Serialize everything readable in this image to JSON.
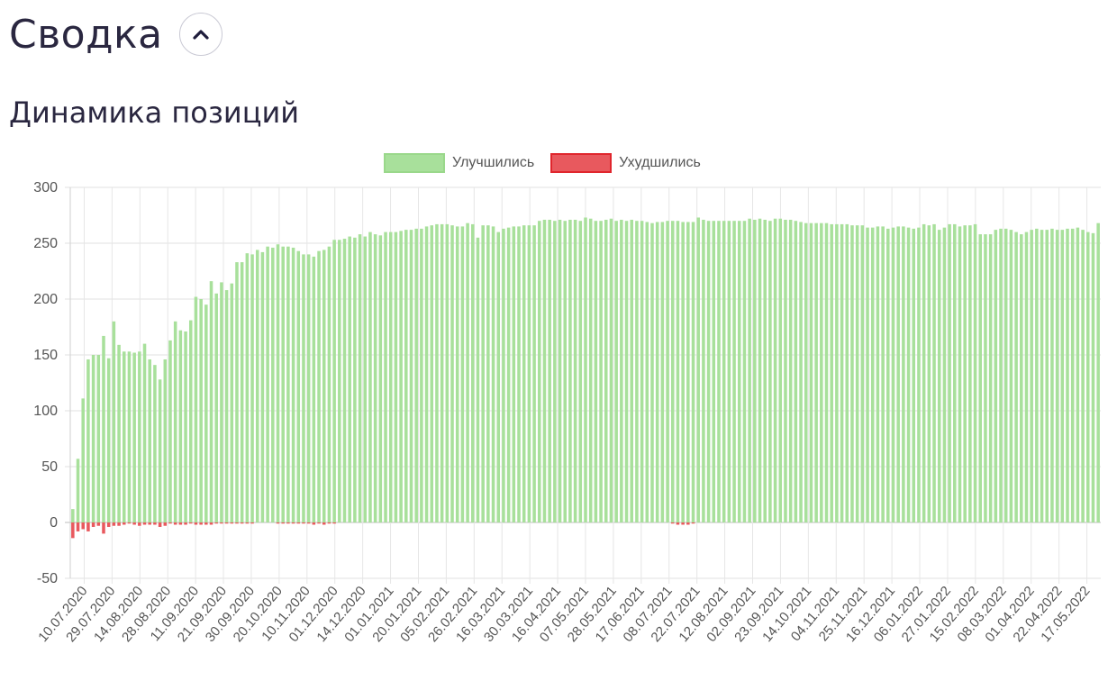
{
  "header": {
    "title": "Сводка",
    "collapse_icon": "chevron-up-icon"
  },
  "section": {
    "title": "Динамика позиций"
  },
  "chart_data": {
    "type": "bar",
    "title": "Динамика позиций",
    "legend_position": "top",
    "grid": true,
    "ylim": [
      -50,
      300
    ],
    "y_ticks": [
      300,
      250,
      200,
      150,
      100,
      50,
      0,
      -50
    ],
    "x_tick_labels": [
      "10.07.2020",
      "29.07.2020",
      "14.08.2020",
      "28.08.2020",
      "11.09.2020",
      "21.09.2020",
      "30.09.2020",
      "20.10.2020",
      "10.11.2020",
      "01.12.2020",
      "14.12.2020",
      "01.01.2021",
      "20.01.2021",
      "05.02.2021",
      "26.02.2021",
      "16.03.2021",
      "30.03.2021",
      "16.04.2021",
      "07.05.2021",
      "28.05.2021",
      "17.06.2021",
      "08.07.2021",
      "22.07.2021",
      "12.08.2021",
      "02.09.2021",
      "23.09.2021",
      "14.10.2021",
      "04.11.2021",
      "25.11.2021",
      "16.12.2021",
      "06.01.2022",
      "27.01.2022",
      "15.02.2022",
      "08.03.2022",
      "01.04.2022",
      "22.04.2022",
      "17.05.2022"
    ],
    "series": [
      {
        "name": "Улучшились",
        "color": "#a8e09b",
        "values": [
          12,
          57,
          111,
          146,
          150,
          150,
          167,
          147,
          180,
          159,
          153,
          153,
          152,
          153,
          160,
          146,
          141,
          128,
          146,
          163,
          180,
          172,
          171,
          181,
          202,
          200,
          195,
          216,
          205,
          215,
          208,
          214,
          233,
          233,
          241,
          240,
          244,
          242,
          247,
          246,
          249,
          247,
          247,
          246,
          243,
          240,
          240,
          238,
          243,
          244,
          247,
          253,
          253,
          254,
          256,
          255,
          258,
          256,
          260,
          258,
          257,
          260,
          260,
          260,
          261,
          262,
          262,
          263,
          263,
          265,
          266,
          267,
          267,
          267,
          266,
          265,
          265,
          268,
          267,
          255,
          266,
          266,
          265,
          260,
          263,
          264,
          265,
          265,
          266,
          266,
          266,
          270,
          271,
          271,
          270,
          271,
          270,
          271,
          271,
          270,
          273,
          272,
          270,
          270,
          271,
          272,
          270,
          271,
          270,
          271,
          270,
          270,
          269,
          268,
          269,
          269,
          270,
          270,
          270,
          269,
          269,
          269,
          273,
          271,
          270,
          270,
          270,
          270,
          270,
          270,
          270,
          270,
          272,
          271,
          272,
          271,
          270,
          272,
          272,
          271,
          271,
          270,
          269,
          268,
          268,
          268,
          268,
          268,
          267,
          267,
          267,
          267,
          266,
          266,
          266,
          264,
          264,
          265,
          265,
          263,
          264,
          265,
          265,
          264,
          263,
          264,
          267,
          266,
          267,
          262,
          264,
          267,
          267,
          265,
          266,
          266,
          267,
          258,
          258,
          258,
          262,
          263,
          263,
          262,
          260,
          258,
          260,
          262,
          263,
          262,
          262,
          263,
          262,
          262,
          263,
          263,
          264,
          262,
          260,
          259,
          268
        ],
        "note": "values are approximate, read off the chart"
      },
      {
        "name": "Ухудшились",
        "color": "#e8595e",
        "values": [
          -14,
          -8,
          -6,
          -8,
          -4,
          -3,
          -10,
          -4,
          -3,
          -3,
          -2,
          -1,
          -2,
          -3,
          -2,
          -2,
          -2,
          -4,
          -3,
          -1,
          -2,
          -2,
          -2,
          -1,
          -2,
          -2,
          -2,
          -2,
          -1,
          -1,
          -1,
          -1,
          -1,
          -1,
          -1,
          -1,
          0,
          0,
          0,
          0,
          -1,
          -1,
          -1,
          -1,
          -1,
          -1,
          -1,
          -2,
          -1,
          -2,
          -1,
          -1,
          0,
          0,
          0,
          0,
          0,
          0,
          0,
          0,
          0,
          0,
          0,
          0,
          0,
          0,
          0,
          0,
          0,
          0,
          0,
          0,
          0,
          0,
          0,
          0,
          0,
          0,
          0,
          0,
          0,
          0,
          0,
          0,
          0,
          0,
          0,
          0,
          0,
          0,
          0,
          0,
          0,
          0,
          0,
          0,
          0,
          0,
          0,
          0,
          0,
          0,
          0,
          0,
          0,
          0,
          0,
          0,
          0,
          0,
          0,
          0,
          0,
          0,
          0,
          0,
          0,
          -1,
          -2,
          -2,
          -2,
          -1,
          0,
          0,
          0,
          0,
          0,
          0,
          0,
          0,
          0,
          0,
          0,
          0,
          0,
          0,
          0,
          0,
          0,
          0,
          0,
          0,
          0,
          0,
          0,
          0,
          0,
          0,
          0,
          0,
          0,
          0,
          0,
          0,
          0,
          0,
          0,
          0,
          0,
          0,
          0,
          0,
          0,
          0,
          0,
          0,
          0,
          0,
          0,
          0,
          0,
          0,
          0,
          0,
          0,
          0,
          0,
          0,
          0,
          0,
          0,
          0,
          0,
          0,
          0,
          0,
          0,
          0,
          0,
          0,
          0,
          0,
          0,
          0,
          0,
          0,
          0,
          0,
          0,
          0,
          0,
          0,
          0,
          0,
          0,
          0,
          0,
          0,
          0,
          0,
          0
        ]
      }
    ]
  }
}
